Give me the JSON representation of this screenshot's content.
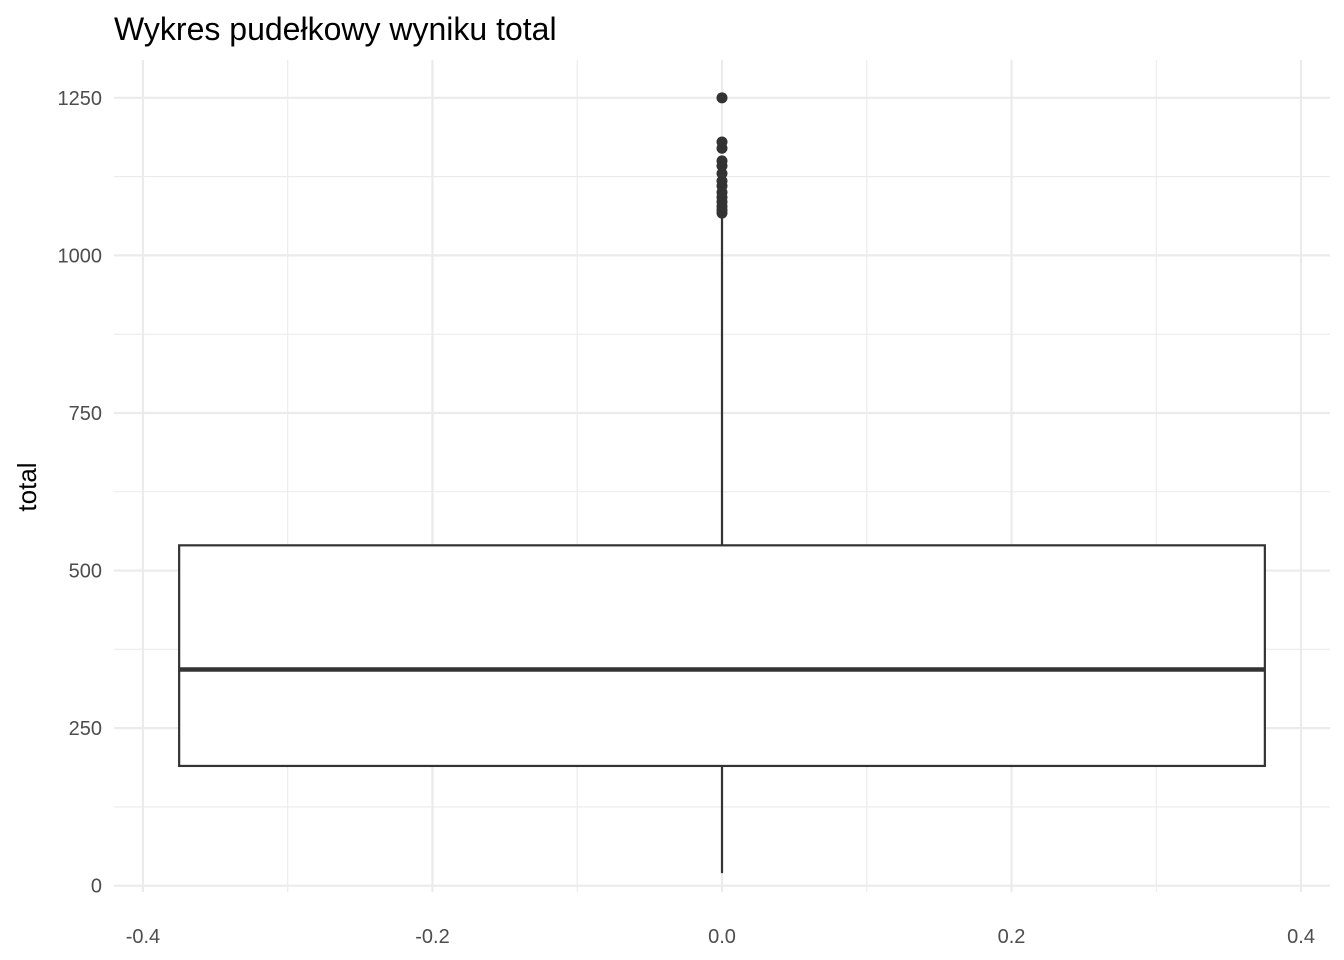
{
  "chart_data": {
    "type": "boxplot",
    "title": "Wykres pudełkowy wyniku total",
    "xlabel": "",
    "ylabel": "total",
    "xlim": [
      -0.42,
      0.42
    ],
    "ylim": [
      -10,
      1310
    ],
    "x_ticks": [
      {
        "value": -0.4,
        "label": "-0.4"
      },
      {
        "value": -0.2,
        "label": "-0.2"
      },
      {
        "value": 0.0,
        "label": "0.0"
      },
      {
        "value": 0.2,
        "label": "0.2"
      },
      {
        "value": 0.4,
        "label": "0.4"
      }
    ],
    "x_minor_ticks": [
      -0.3,
      -0.1,
      0.1,
      0.3
    ],
    "y_ticks": [
      {
        "value": 0,
        "label": "0"
      },
      {
        "value": 250,
        "label": "250"
      },
      {
        "value": 500,
        "label": "500"
      },
      {
        "value": 750,
        "label": "750"
      },
      {
        "value": 1000,
        "label": "1000"
      },
      {
        "value": 1250,
        "label": "1250"
      }
    ],
    "y_minor_ticks": [
      125,
      375,
      625,
      875,
      1125
    ],
    "grid": true,
    "box": {
      "x_center": 0.0,
      "x_left": -0.375,
      "x_right": 0.375,
      "whisker_low": 20,
      "q1": 190,
      "median": 343,
      "q3": 540,
      "whisker_high": 1062
    },
    "outliers": [
      1067,
      1072,
      1078,
      1085,
      1092,
      1100,
      1110,
      1118,
      1130,
      1142,
      1150,
      1170,
      1180,
      1250
    ],
    "colors": {
      "box_stroke": "#333333",
      "box_fill": "#ffffff",
      "grid": "#ebebeb",
      "tick_text": "#4d4d4d"
    }
  }
}
